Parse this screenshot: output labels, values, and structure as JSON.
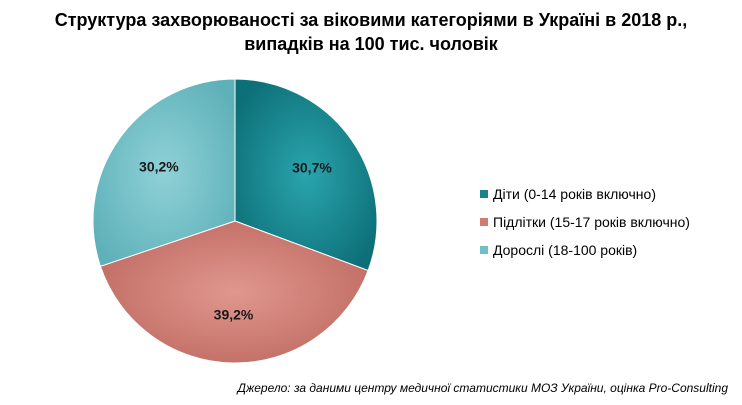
{
  "chart_data": {
    "type": "pie",
    "title_line1": "Структура захворюваності за віковими категоріями в Україні в 2018 р.,",
    "title_line2": "випадків на 100 тис. чоловік",
    "slices": [
      {
        "label": "Діти (0-14 років включно)",
        "value": 30.7,
        "value_label": "30,7%",
        "color": "#18858d"
      },
      {
        "label": "Підлітки  (15-17 років включно)",
        "value": 39.2,
        "value_label": "39,2%",
        "color": "#cf7c73"
      },
      {
        "label": "Дорослі  (18-100 років)",
        "value": 30.2,
        "value_label": "30,2%",
        "color": "#72c0c7"
      }
    ],
    "start_angle_deg": 0,
    "direction": "clockwise",
    "legend_position": "right"
  },
  "source": "Джерело: за даними центру медичної статистики МОЗ України, оцінка Pro-Consulting"
}
